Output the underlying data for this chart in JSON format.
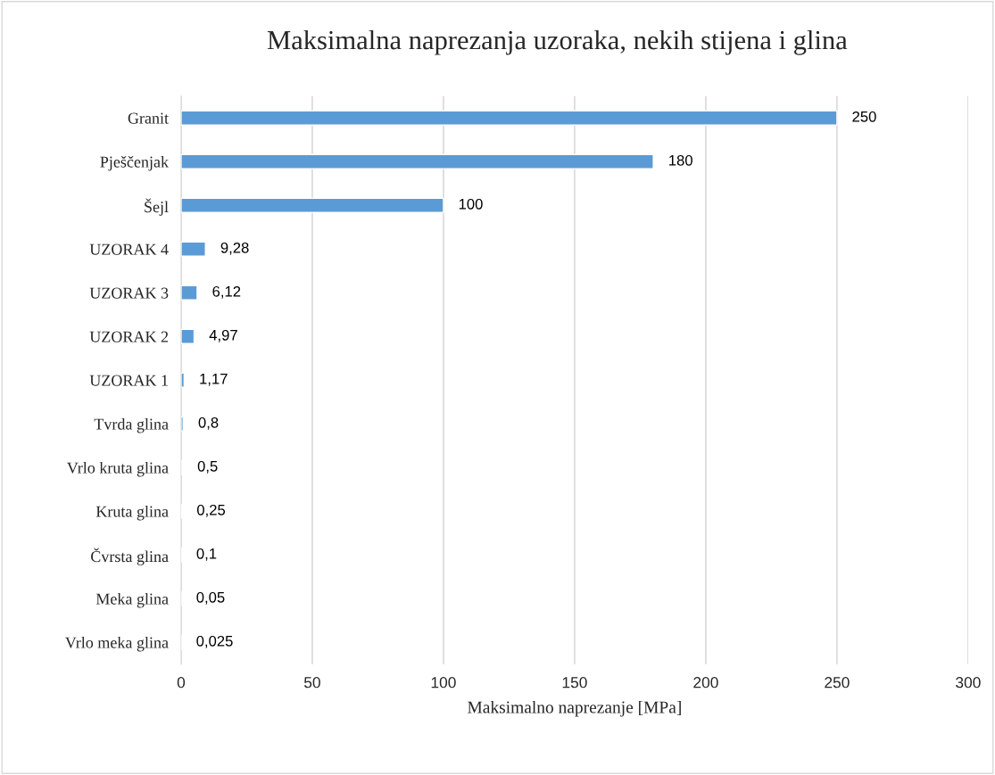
{
  "chart_data": {
    "type": "bar",
    "orientation": "horizontal",
    "title": "Maksimalna naprezanja uzoraka, nekih stijena i glina",
    "xlabel": "Maksimalno naprezanje [MPa]",
    "categories": [
      "Granit",
      "Pješčenjak",
      "Šejl",
      "UZORAK 4",
      "UZORAK 3",
      "UZORAK 2",
      "UZORAK 1",
      "Tvrda glina",
      "Vrlo kruta glina",
      "Kruta glina",
      "Čvrsta glina",
      "Meka glina",
      "Vrlo meka glina"
    ],
    "values": [
      250,
      180,
      100,
      9.28,
      6.12,
      4.97,
      1.17,
      0.8,
      0.5,
      0.25,
      0.1,
      0.05,
      0.025
    ],
    "value_labels": [
      "250",
      "180",
      "100",
      "9,28",
      "6,12",
      "4,97",
      "1,17",
      "0,8",
      "0,5",
      "0,25",
      "0,1",
      "0,05",
      "0,025"
    ],
    "color": "#5b9bd5",
    "xlim": [
      0,
      300
    ],
    "xticks": [
      0,
      50,
      100,
      150,
      200,
      250,
      300
    ],
    "grid": "x",
    "legend": false
  }
}
